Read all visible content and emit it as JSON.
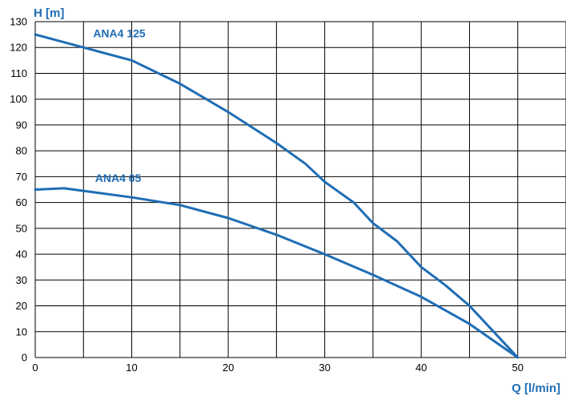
{
  "chart_data": {
    "type": "line",
    "xlabel": "Q [l/min]",
    "ylabel": "H [m]",
    "xlim": [
      0,
      55
    ],
    "ylim": [
      0,
      130
    ],
    "x_ticks": [
      0,
      10,
      20,
      30,
      40,
      50
    ],
    "y_ticks": [
      0,
      10,
      20,
      30,
      40,
      50,
      60,
      70,
      80,
      90,
      100,
      110,
      120,
      130
    ],
    "grid": true,
    "line_color": "#1f6db5",
    "series": [
      {
        "name": "ANA4 125",
        "x": [
          0,
          5,
          10,
          15,
          20,
          25,
          28,
          30,
          33,
          35,
          37.5,
          40,
          42.5,
          45,
          47.5,
          50
        ],
        "y": [
          125,
          120,
          115,
          106,
          95,
          83,
          75,
          68,
          60,
          52,
          45,
          35,
          28,
          20,
          10,
          0
        ]
      },
      {
        "name": "ANA4 65",
        "x": [
          0,
          3,
          5,
          10,
          15,
          20,
          25,
          30,
          35,
          40,
          45,
          50
        ],
        "y": [
          65,
          65.5,
          64.5,
          62,
          59,
          54,
          47.5,
          40,
          32,
          23.5,
          13,
          0
        ]
      }
    ]
  }
}
